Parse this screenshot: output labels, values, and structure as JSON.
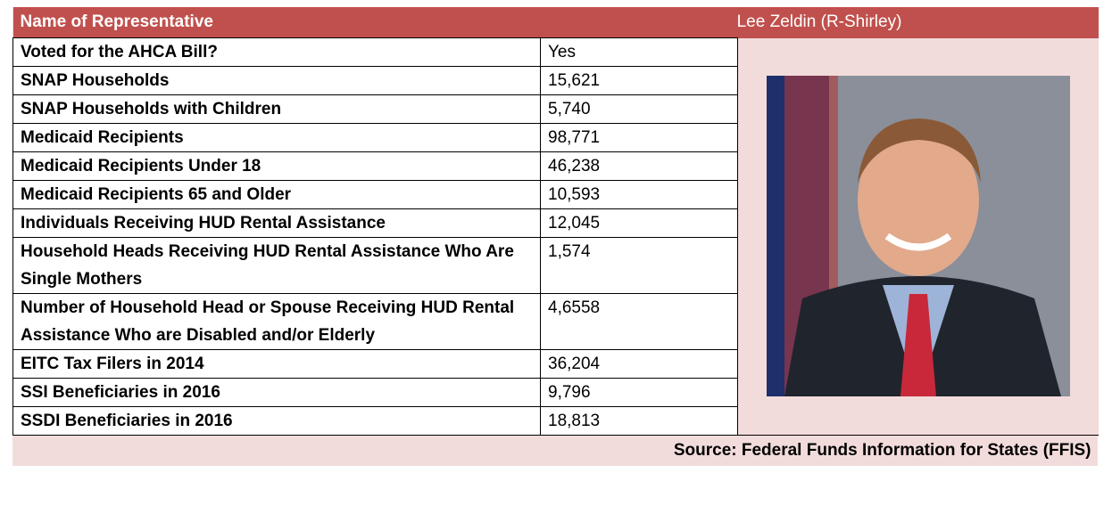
{
  "header": {
    "label": "Name of Representative",
    "name": "Lee Zeldin (R-Shirley)"
  },
  "rows": [
    [
      "Voted for the AHCA Bill?",
      "Yes"
    ],
    [
      "SNAP Households",
      "15,621"
    ],
    [
      "SNAP Households with Children",
      "5,740"
    ],
    [
      "Medicaid Recipients",
      "98,771"
    ],
    [
      "Medicaid Recipients Under 18",
      "46,238"
    ],
    [
      "Medicaid Recipients 65 and Older",
      "10,593"
    ],
    [
      "Individuals Receiving HUD Rental Assistance",
      "12,045"
    ],
    [
      "Household Heads Receiving HUD Rental Assistance Who Are Single Mothers",
      "1,574"
    ],
    [
      "Number of Household Head or Spouse Receiving HUD Rental Assistance Who are Disabled and/or Elderly",
      "4,6558"
    ],
    [
      "EITC Tax Filers in 2014",
      "36,204"
    ],
    [
      "SSI Beneficiaries in 2016",
      "9,796"
    ],
    [
      "SSDI Beneficiaries in 2016",
      "18,813"
    ]
  ],
  "source": "Source: Federal Funds Information for States (FFIS)"
}
